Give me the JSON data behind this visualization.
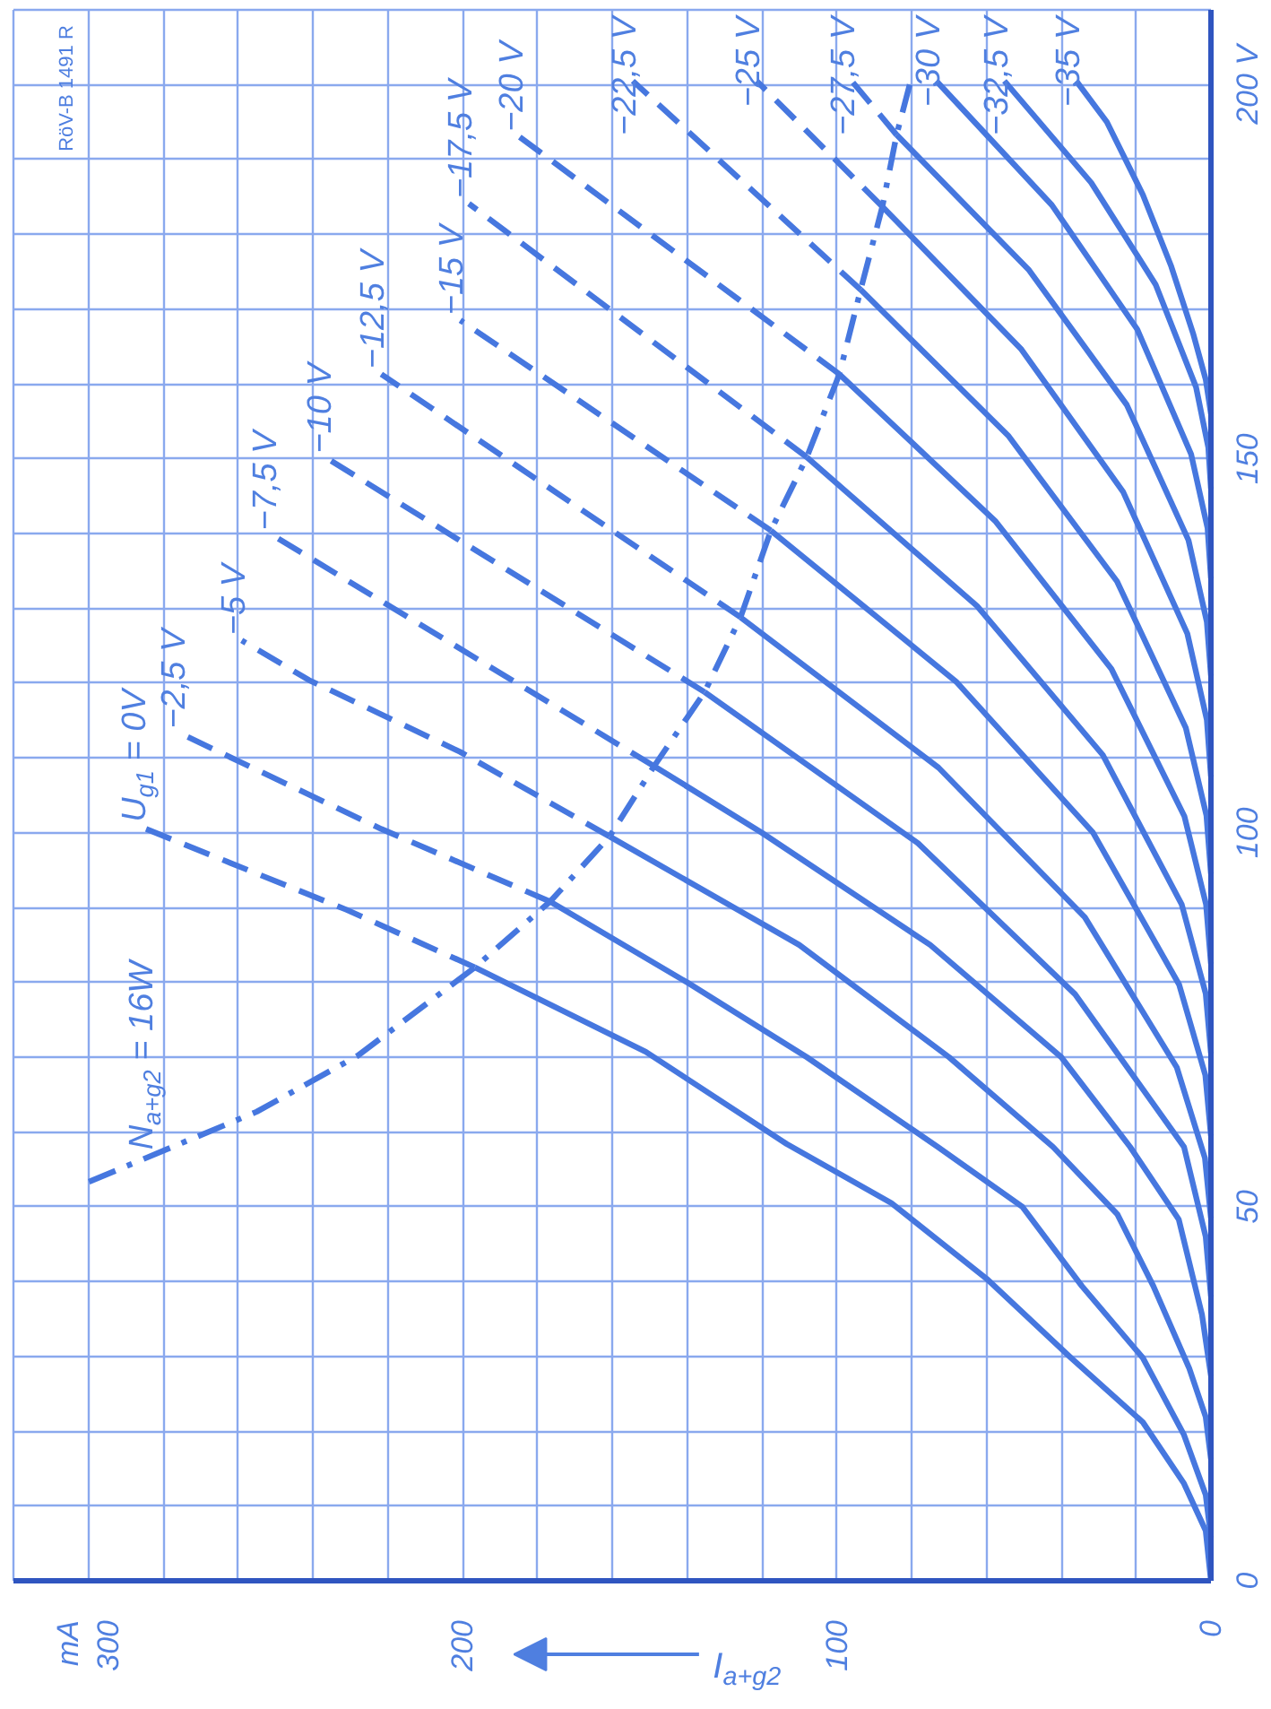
{
  "chart_data": {
    "type": "line",
    "xlabel": "I$_{a+g2}$",
    "annotations": [
      "RöV-B 1491 R"
    ],
    "grid": true,
    "xlim": [
      320,
      0
    ],
    "ylim": [
      0,
      210
    ],
    "xticks": [
      0,
      {
        "value": 20,
        "label": null
      },
      {
        "value": 40,
        "label": null
      },
      {
        "value": 60,
        "label": null
      },
      {
        "value": 80,
        "label": null
      },
      100,
      {
        "value": 120,
        "label": null
      },
      {
        "value": 140,
        "label": null
      },
      {
        "value": 160,
        "label": null
      },
      {
        "value": 180,
        "label": null
      },
      200,
      {
        "value": 220,
        "label": null
      },
      {
        "value": 240,
        "label": null
      },
      {
        "value": 260,
        "label": null
      },
      {
        "value": 280,
        "label": null
      },
      {
        "value": 300,
        "label": "mA\n300"
      },
      {
        "value": 320,
        "label": null
      }
    ],
    "yticks": [
      0,
      {
        "value": 10,
        "label": null
      },
      {
        "value": 20,
        "label": null
      },
      {
        "value": 30,
        "label": null
      },
      {
        "value": 40,
        "label": null
      },
      50,
      {
        "value": 60,
        "label": null
      },
      {
        "value": 70,
        "label": null
      },
      {
        "value": 80,
        "label": null
      },
      {
        "value": 90,
        "label": null
      },
      100,
      {
        "value": 110,
        "label": null
      },
      {
        "value": 120,
        "label": null
      },
      {
        "value": 130,
        "label": null
      },
      {
        "value": 140,
        "label": null
      },
      150,
      {
        "value": 160,
        "label": null
      },
      {
        "value": 170,
        "label": null
      },
      {
        "value": 180,
        "label": null
      },
      {
        "value": 190,
        "label": null
      },
      {
        "value": 200,
        "label": "200 V"
      },
      {
        "value": 210,
        "label": null
      }
    ],
    "series": [
      {
        "color": "#4677df",
        "line_style": "solid",
        "x": [
          0,
          1.4,
          7.2,
          18.2,
          37.4,
          60,
          85.4,
          113.4,
          151,
          196.7
        ],
        "values": [
          0,
          6.7,
          13,
          21.2,
          29.8,
          40.4,
          50.5,
          58.4,
          70.7,
          82
        ]
      },
      {
        "name": "U$_{g1}$ = 0V",
        "color": "#4677df",
        "line_style": "dashed",
        "x": [
          196.7,
          231,
          285.5
        ],
        "values": [
          82,
          89.7,
          100.7
        ]
      },
      {
        "color": "#4677df",
        "line_style": "solid",
        "x": [
          0,
          1.4,
          7.2,
          18.2,
          34.5,
          50.4,
          73,
          108,
          140,
          176.6
        ],
        "values": [
          5.8,
          11.5,
          19.5,
          29.8,
          39.4,
          50,
          58,
          70,
          80,
          90.8
        ]
      },
      {
        "name": "−2,5 V",
        "color": "#4677df",
        "line_style": "dashed",
        "x": [
          176.6,
          221.7,
          260,
          275
        ],
        "values": [
          90.8,
          100.5,
          109.6,
          113.2
        ]
      },
      {
        "color": "#4677df",
        "line_style": "solid",
        "x": [
          0,
          1.4,
          5.8,
          15.4,
          25,
          42.2,
          70,
          110,
          160.7
        ],
        "values": [
          16.3,
          21.9,
          28.4,
          39.4,
          49,
          58,
          70,
          85,
          99.5
        ]
      },
      {
        "name": "−5 V",
        "color": "#4677df",
        "line_style": "dashed",
        "x": [
          160.7,
          200.6,
          241,
          259
        ],
        "values": [
          99.5,
          110.8,
          120.4,
          125.7
        ]
      },
      {
        "color": "#4677df",
        "line_style": "solid",
        "x": [
          0,
          2.4,
          8.6,
          21.6,
          40,
          75,
          120,
          148.8
        ],
        "values": [
          27.4,
          35.6,
          48.3,
          58,
          70,
          85,
          100,
          108.9
        ]
      },
      {
        "name": "−7,5 V",
        "color": "#4677df",
        "line_style": "dashed",
        "x": [
          148.8,
          250.5
        ],
        "values": [
          108.9,
          139.7
        ]
      },
      {
        "color": "#4677df",
        "line_style": "solid",
        "x": [
          0,
          1.4,
          7.2,
          36.3,
          78.3,
          135.3
        ],
        "values": [
          38,
          46,
          58,
          78.4,
          98.6,
          118.8
        ]
      },
      {
        "name": "−10 V",
        "color": "#4677df",
        "line_style": "dashed",
        "x": [
          135.3,
          236
        ],
        "values": [
          118.8,
          150
        ]
      },
      {
        "color": "#4677df",
        "line_style": "solid",
        "x": [
          0,
          1.6,
          9.1,
          33.7,
          72.8,
          125.7
        ],
        "values": [
          48.5,
          56.5,
          68.6,
          88.7,
          108.7,
          128.8
        ]
      },
      {
        "name": "−12,5 V",
        "color": "#4677df",
        "line_style": "dashed",
        "x": [
          125.7,
          221.7
        ],
        "values": [
          128.8,
          161.3
        ]
      },
      {
        "color": "#4677df",
        "line_style": "solid",
        "x": [
          0,
          1.5,
          8.5,
          31.5,
          68.1,
          117.6
        ],
        "values": [
          59.5,
          67.6,
          79.7,
          100,
          120.2,
          140.4
        ]
      },
      {
        "name": "−15 V",
        "color": "#4677df",
        "line_style": "dashed",
        "x": [
          117.6,
          200.6
        ],
        "values": [
          140.4,
          168.5
        ]
      },
      {
        "color": "#4677df",
        "line_style": "solid",
        "x": [
          0,
          1.4,
          7.8,
          28.9,
          62.5,
          108
        ],
        "values": [
          70.5,
          78.5,
          90.4,
          110.4,
          130.3,
          150.2
        ]
      },
      {
        "name": "−17,5 V",
        "color": "#4677df",
        "line_style": "dashed",
        "x": [
          108,
          198.3
        ],
        "values": [
          150.2,
          184.1
        ]
      },
      {
        "color": "#4677df",
        "line_style": "solid",
        "x": [
          0,
          1.3,
          7.1,
          26.6,
          57.5,
          99.3
        ],
        "values": [
          82.5,
          90.4,
          102.2,
          121.9,
          141.6,
          161.3
        ]
      },
      {
        "name": "−20 V",
        "color": "#4677df",
        "line_style": "dashed",
        "x": [
          99.3,
          184.7
        ],
        "values": [
          161.3,
          193
        ]
      },
      {
        "color": "#4677df",
        "line_style": "solid",
        "x": [
          0,
          1.2,
          6.7,
          25.1,
          54.2,
          93.6
        ],
        "values": [
          94.5,
          102.3,
          114,
          133.6,
          153.1,
          172.6
        ]
      },
      {
        "name": "−22,5 V",
        "color": "#4677df",
        "line_style": "dashed",
        "x": [
          93.6,
          154.5
        ],
        "values": [
          172.6,
          200.5
        ]
      },
      {
        "color": "#4677df",
        "line_style": "solid",
        "x": [
          0,
          1.1,
          6.3,
          23.5,
          50.8,
          87.8
        ],
        "values": [
          107.5,
          115.1,
          126.6,
          145.6,
          164.7,
          183.7
        ]
      },
      {
        "name": "−25 V",
        "color": "#4677df",
        "line_style": "dashed",
        "x": [
          87.8,
          121.4
        ],
        "values": [
          183.7,
          200.5
        ]
      },
      {
        "color": "#4677df",
        "line_style": "solid",
        "x": [
          0,
          1.1,
          6,
          22.5,
          48.6,
          84
        ],
        "values": [
          121,
          128.2,
          139.1,
          157.2,
          175.2,
          193.3
        ]
      },
      {
        "name": "−27,5 V",
        "color": "#4677df",
        "line_style": "dashed",
        "x": [
          84,
          96
        ],
        "values": [
          193.3,
          200.5
        ]
      },
      {
        "name": "−30 V",
        "color": "#4677df",
        "line_style": "solid",
        "x": [
          0,
          0.9,
          5.3,
          19.7,
          42.5,
          73.4
        ],
        "values": [
          134,
          140.7,
          150.6,
          167.3,
          183.9,
          200.5
        ]
      },
      {
        "name": "−32,5 V",
        "color": "#4677df",
        "line_style": "solid",
        "x": [
          0,
          0.7,
          4,
          14.8,
          32,
          55.2
        ],
        "values": [
          146,
          151.5,
          159.6,
          173.3,
          186.9,
          200.5
        ]
      },
      {
        "name": "−35 V",
        "color": "#4677df",
        "line_style": "solid",
        "x": [
          0,
          1.4,
          4.8,
          10.6,
          18.2,
          27.8,
          36
        ],
        "values": [
          156,
          160.6,
          166.8,
          175.7,
          185.3,
          195,
          200.5
        ]
      },
      {
        "name": "N$_{a+g2}$ = 16W",
        "color": "#4677df",
        "line_style": "dashdot",
        "x": [
          80.5,
          84,
          87.8,
          93.6,
          99.3,
          108,
          117.6,
          125.7,
          135.3,
          148.8,
          160.7,
          176.6,
          196.7,
          228,
          255,
          300
        ],
        "values": [
          200,
          193.3,
          183.7,
          172.6,
          161.3,
          150.2,
          140.4,
          128.8,
          118.8,
          108.9,
          99.5,
          90.8,
          82,
          70.2,
          62.7,
          53.3
        ]
      }
    ]
  }
}
